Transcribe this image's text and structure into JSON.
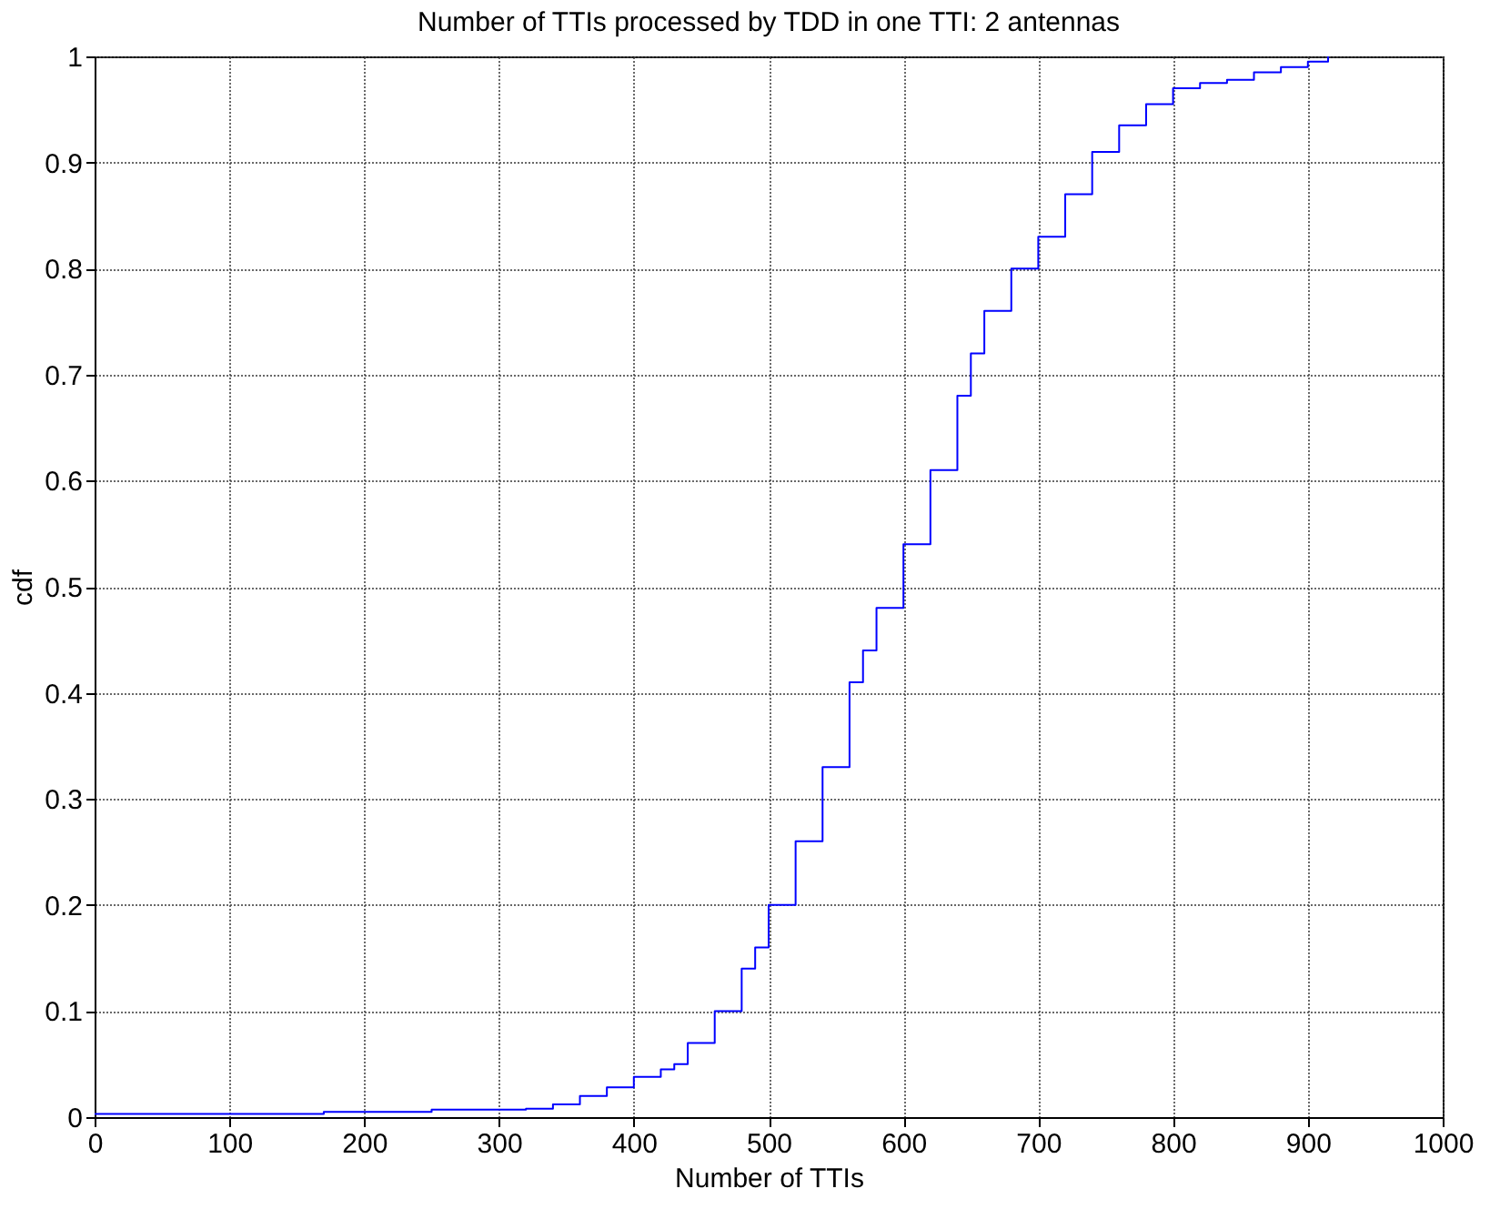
{
  "chart_data": {
    "type": "step",
    "title": "Number of TTIs processed by TDD in one TTI: 2 antennas",
    "xlabel": "Number of TTIs",
    "ylabel": "cdf",
    "x": [
      0,
      100,
      170,
      250,
      320,
      340,
      360,
      380,
      400,
      420,
      430,
      440,
      460,
      480,
      490,
      500,
      520,
      540,
      560,
      570,
      580,
      600,
      620,
      640,
      650,
      660,
      680,
      700,
      720,
      740,
      760,
      780,
      800,
      820,
      840,
      860,
      880,
      900,
      915
    ],
    "series": [
      {
        "color": "#0000ff",
        "values": [
          0.003,
          0.003,
          0.005,
          0.007,
          0.008,
          0.012,
          0.02,
          0.028,
          0.038,
          0.045,
          0.05,
          0.07,
          0.1,
          0.14,
          0.16,
          0.2,
          0.26,
          0.33,
          0.41,
          0.44,
          0.48,
          0.54,
          0.61,
          0.68,
          0.72,
          0.76,
          0.8,
          0.83,
          0.87,
          0.91,
          0.935,
          0.955,
          0.97,
          0.975,
          0.978,
          0.985,
          0.99,
          0.995,
          1.0
        ]
      }
    ],
    "xlim": [
      0,
      1000
    ],
    "xticks": [
      0,
      100,
      200,
      300,
      400,
      500,
      600,
      700,
      800,
      900,
      1000
    ],
    "ylim": [
      0,
      1
    ],
    "yticks": [
      0,
      0.1,
      0.2,
      0.3,
      0.4,
      0.5,
      0.6,
      0.7,
      0.8,
      0.9,
      1
    ],
    "grid": true,
    "line_style": "solid",
    "marker": "none"
  }
}
